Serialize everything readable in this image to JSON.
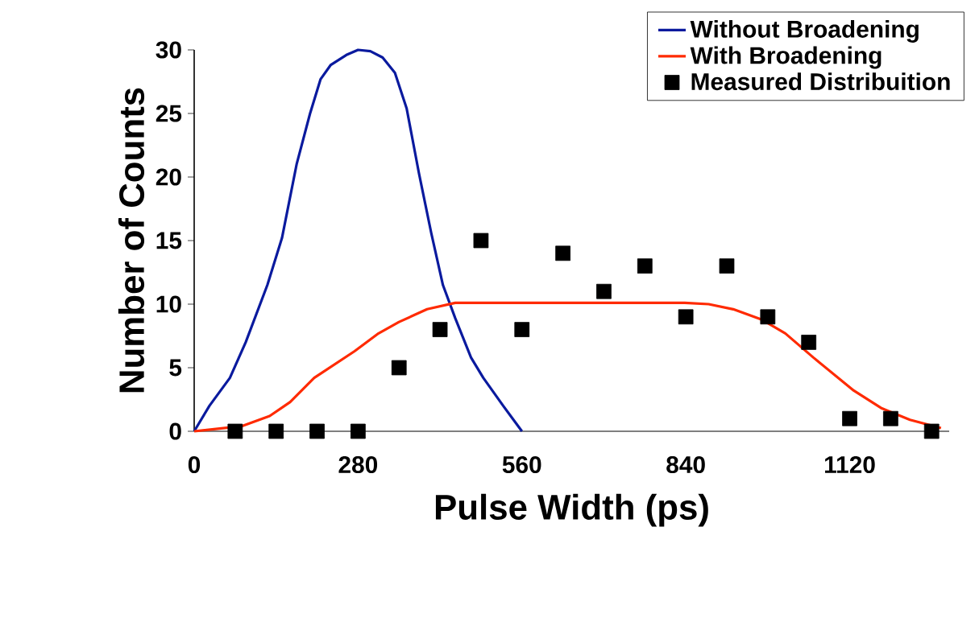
{
  "chart_data": {
    "type": "line",
    "xlabel": "Pulse Width (ps)",
    "ylabel": "Number of Counts",
    "xlim": [
      0,
      1290
    ],
    "ylim": [
      0,
      30
    ],
    "xticks": [
      0,
      280,
      560,
      840,
      1120
    ],
    "yticks": [
      0,
      5,
      10,
      15,
      20,
      25,
      30
    ],
    "grid": false,
    "legend": "top right",
    "series": [
      {
        "name": "Without Broadening",
        "color": "#0a1a9e",
        "marker": "none",
        "x": [
          0,
          26,
          61,
          88,
          125,
          150,
          175,
          198,
          216,
          233,
          260,
          280,
          301,
          322,
          343,
          363,
          384,
          405,
          425,
          446,
          473,
          494,
          528,
          560
        ],
        "values": [
          0,
          2,
          4.2,
          7,
          11.5,
          15.2,
          21,
          25,
          27.7,
          28.8,
          29.6,
          30,
          29.9,
          29.4,
          28.2,
          25.4,
          20.3,
          15.6,
          11.5,
          8.9,
          5.8,
          4.2,
          2,
          0
        ]
      },
      {
        "name": "With Broadening",
        "color": "#ff2a00",
        "marker": "none",
        "x": [
          0,
          81,
          129,
          164,
          205,
          274,
          315,
          350,
          398,
          446,
          563,
          838,
          879,
          921,
          969,
          1010,
          1058,
          1127,
          1175,
          1223,
          1276
        ],
        "values": [
          0,
          0.4,
          1.2,
          2.3,
          4.2,
          6.3,
          7.7,
          8.6,
          9.6,
          10.1,
          10.1,
          10.1,
          10,
          9.6,
          8.8,
          7.7,
          5.8,
          3.2,
          1.8,
          0.9,
          0.25
        ]
      },
      {
        "name": "Measured Distribuition",
        "color": "#000000",
        "type": "scatter",
        "marker": "square",
        "x": [
          70,
          140,
          210,
          280,
          350,
          420,
          490,
          560,
          630,
          700,
          770,
          840,
          910,
          980,
          1050,
          1120,
          1190,
          1260
        ],
        "values": [
          0,
          0,
          0,
          0,
          5,
          8,
          15,
          8,
          14,
          11,
          13,
          9,
          13,
          9,
          7,
          1,
          1,
          0
        ]
      }
    ]
  }
}
